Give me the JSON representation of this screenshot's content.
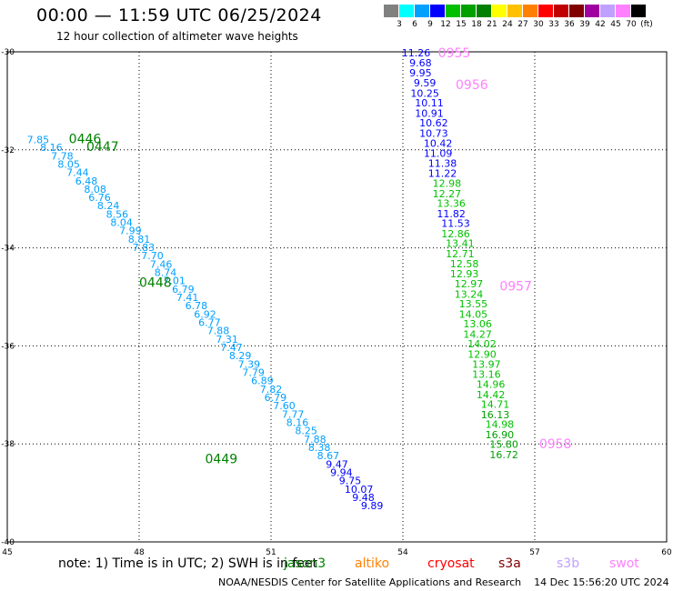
{
  "title": "00:00 — 11:59 UTC 06/25/2024",
  "subtitle": "12 hour collection of altimeter wave heights",
  "colorbar": {
    "colors": [
      "#808080",
      "#00ffff",
      "#00a0ff",
      "#0000ff",
      "#00c000",
      "#00a000",
      "#008000",
      "#ffff00",
      "#ffc000",
      "#ff8000",
      "#ff0000",
      "#c00000",
      "#800000",
      "#a000a0",
      "#c0a0ff",
      "#ff80ff",
      "#000000"
    ],
    "labels": [
      "3",
      "6",
      "9",
      "12",
      "15",
      "18",
      "21",
      "24",
      "27",
      "30",
      "33",
      "36",
      "39",
      "42",
      "45",
      "70",
      "(ft)"
    ]
  },
  "note": "note: 1) Time is in UTC; 2) SWH is in feet",
  "satellites": [
    {
      "name": "jason3",
      "color": "#008000"
    },
    {
      "name": "altiko",
      "color": "#ff8000"
    },
    {
      "name": "cryosat",
      "color": "#ff0000"
    },
    {
      "name": "s3a",
      "color": "#800000"
    },
    {
      "name": "s3b",
      "color": "#c0a0ff"
    },
    {
      "name": "swot",
      "color": "#ff80ff"
    }
  ],
  "footer": "NOAA/NESDIS Center for Satellite Applications and Research    14 Dec 15:56:20 UTC 2024",
  "chart_data": {
    "type": "scatter",
    "xlim": [
      45,
      60
    ],
    "ylim": [
      -40,
      -30
    ],
    "x_ticks": [
      "45",
      "48",
      "51",
      "54",
      "57",
      "60"
    ],
    "y_ticks": [
      "-30",
      "-32",
      "-34",
      "-36",
      "-38",
      "-40"
    ],
    "grid": true,
    "tracks": [
      {
        "labels": [
          {
            "text": "0446",
            "x": 46.4,
            "y": -31.77,
            "color": "#008000"
          },
          {
            "text": "0447",
            "x": 46.8,
            "y": -31.93,
            "color": "#008000"
          },
          {
            "text": "0448",
            "x": 48.0,
            "y": -34.7,
            "color": "#008000"
          },
          {
            "text": "0449",
            "x": 49.5,
            "y": -38.3,
            "color": "#008000"
          }
        ],
        "points": [
          {
            "x": 45.7,
            "y": -31.79,
            "v": "7.85"
          },
          {
            "x": 46.0,
            "y": -31.95,
            "v": "8.16"
          },
          {
            "x": 46.25,
            "y": -32.12,
            "v": "7.78"
          },
          {
            "x": 46.4,
            "y": -32.29,
            "v": "8.05"
          },
          {
            "x": 46.6,
            "y": -32.46,
            "v": "7.44"
          },
          {
            "x": 46.8,
            "y": -32.63,
            "v": "6.48"
          },
          {
            "x": 47.0,
            "y": -32.8,
            "v": "8.08"
          },
          {
            "x": 47.1,
            "y": -32.97,
            "v": "6.76"
          },
          {
            "x": 47.3,
            "y": -33.14,
            "v": "8.24"
          },
          {
            "x": 47.5,
            "y": -33.31,
            "v": "8.56"
          },
          {
            "x": 47.6,
            "y": -33.48,
            "v": "8.04"
          },
          {
            "x": 47.8,
            "y": -33.65,
            "v": "7.99"
          },
          {
            "x": 48.0,
            "y": -33.82,
            "v": "8.81"
          },
          {
            "x": 48.1,
            "y": -33.99,
            "v": "7.83"
          },
          {
            "x": 48.3,
            "y": -34.16,
            "v": "7.70"
          },
          {
            "x": 48.5,
            "y": -34.33,
            "v": "7.46"
          },
          {
            "x": 48.6,
            "y": -34.5,
            "v": "8.74"
          },
          {
            "x": 48.8,
            "y": -34.67,
            "v": "7.01"
          },
          {
            "x": 49.0,
            "y": -34.84,
            "v": "6.79"
          },
          {
            "x": 49.1,
            "y": -35.01,
            "v": "7.41"
          },
          {
            "x": 49.3,
            "y": -35.18,
            "v": "6.78"
          },
          {
            "x": 49.5,
            "y": -35.35,
            "v": "6.92"
          },
          {
            "x": 49.6,
            "y": -35.52,
            "v": "6.77"
          },
          {
            "x": 49.8,
            "y": -35.69,
            "v": "7.88"
          },
          {
            "x": 50.0,
            "y": -35.86,
            "v": "7.31"
          },
          {
            "x": 50.1,
            "y": -36.03,
            "v": "7.47"
          },
          {
            "x": 50.3,
            "y": -36.2,
            "v": "8.29"
          },
          {
            "x": 50.5,
            "y": -36.37,
            "v": "7.39"
          },
          {
            "x": 50.6,
            "y": -36.54,
            "v": "7.79"
          },
          {
            "x": 50.8,
            "y": -36.71,
            "v": "6.89"
          },
          {
            "x": 51.0,
            "y": -36.88,
            "v": "7.82"
          },
          {
            "x": 51.1,
            "y": -37.05,
            "v": "6.79"
          },
          {
            "x": 51.3,
            "y": -37.22,
            "v": "7.60"
          },
          {
            "x": 51.5,
            "y": -37.39,
            "v": "7.77"
          },
          {
            "x": 51.6,
            "y": -37.56,
            "v": "8.16"
          },
          {
            "x": 51.8,
            "y": -37.73,
            "v": "8.25"
          },
          {
            "x": 52.0,
            "y": -37.9,
            "v": "7.88"
          },
          {
            "x": 52.1,
            "y": -38.07,
            "v": "8.38"
          },
          {
            "x": 52.3,
            "y": -38.24,
            "v": "8.67"
          },
          {
            "x": 52.5,
            "y": -38.41,
            "v": "9.47"
          },
          {
            "x": 52.6,
            "y": -38.58,
            "v": "9.94"
          },
          {
            "x": 52.8,
            "y": -38.75,
            "v": "9.75"
          },
          {
            "x": 53.0,
            "y": -38.92,
            "v": "10.07"
          },
          {
            "x": 53.1,
            "y": -39.09,
            "v": "9.48"
          },
          {
            "x": 53.3,
            "y": -39.26,
            "v": "9.89"
          }
        ]
      },
      {
        "labels": [
          {
            "text": "0955",
            "x": 54.8,
            "y": -30.02,
            "color": "#ff80ff"
          },
          {
            "text": "0956",
            "x": 55.2,
            "y": -30.67,
            "color": "#ff80ff"
          },
          {
            "text": "0957",
            "x": 56.2,
            "y": -34.78,
            "color": "#ff80ff"
          },
          {
            "text": "0958",
            "x": 57.1,
            "y": -38.0,
            "color": "#ff80ff"
          }
        ],
        "points": [
          {
            "x": 54.3,
            "y": -30.02,
            "v": "11.26"
          },
          {
            "x": 54.4,
            "y": -30.22,
            "v": "9.68"
          },
          {
            "x": 54.4,
            "y": -30.43,
            "v": "9.95"
          },
          {
            "x": 54.5,
            "y": -30.63,
            "v": "9.59"
          },
          {
            "x": 54.5,
            "y": -30.84,
            "v": "10.25"
          },
          {
            "x": 54.6,
            "y": -31.04,
            "v": "10.11"
          },
          {
            "x": 54.6,
            "y": -31.25,
            "v": "10.91"
          },
          {
            "x": 54.7,
            "y": -31.45,
            "v": "10.62"
          },
          {
            "x": 54.7,
            "y": -31.66,
            "v": "10.73"
          },
          {
            "x": 54.8,
            "y": -31.86,
            "v": "10.42"
          },
          {
            "x": 54.8,
            "y": -32.07,
            "v": "11.09"
          },
          {
            "x": 54.9,
            "y": -32.27,
            "v": "11.38"
          },
          {
            "x": 54.9,
            "y": -32.48,
            "v": "11.22"
          },
          {
            "x": 55.0,
            "y": -32.68,
            "v": "12.98"
          },
          {
            "x": 55.0,
            "y": -32.89,
            "v": "12.27"
          },
          {
            "x": 55.1,
            "y": -33.09,
            "v": "13.36"
          },
          {
            "x": 55.1,
            "y": -33.3,
            "v": "11.82"
          },
          {
            "x": 55.2,
            "y": -33.5,
            "v": "11.53"
          },
          {
            "x": 55.2,
            "y": -33.71,
            "v": "12.86"
          },
          {
            "x": 55.3,
            "y": -33.91,
            "v": "13.41"
          },
          {
            "x": 55.3,
            "y": -34.12,
            "v": "12.71"
          },
          {
            "x": 55.4,
            "y": -34.32,
            "v": "12.58"
          },
          {
            "x": 55.4,
            "y": -34.53,
            "v": "12.93"
          },
          {
            "x": 55.5,
            "y": -34.73,
            "v": "12.97"
          },
          {
            "x": 55.5,
            "y": -34.94,
            "v": "13.24"
          },
          {
            "x": 55.6,
            "y": -35.14,
            "v": "13.55"
          },
          {
            "x": 55.6,
            "y": -35.35,
            "v": "14.05"
          },
          {
            "x": 55.7,
            "y": -35.55,
            "v": "13.06"
          },
          {
            "x": 55.7,
            "y": -35.76,
            "v": "14.27"
          },
          {
            "x": 55.8,
            "y": -35.96,
            "v": "14.02"
          },
          {
            "x": 55.8,
            "y": -36.17,
            "v": "12.90"
          },
          {
            "x": 55.9,
            "y": -36.37,
            "v": "13.97"
          },
          {
            "x": 55.9,
            "y": -36.58,
            "v": "13.16"
          },
          {
            "x": 56.0,
            "y": -36.78,
            "v": "14.96"
          },
          {
            "x": 56.0,
            "y": -36.99,
            "v": "14.42"
          },
          {
            "x": 56.1,
            "y": -37.19,
            "v": "14.71"
          },
          {
            "x": 56.1,
            "y": -37.4,
            "v": "16.13"
          },
          {
            "x": 56.2,
            "y": -37.6,
            "v": "14.98"
          },
          {
            "x": 56.2,
            "y": -37.81,
            "v": "16.90"
          },
          {
            "x": 56.3,
            "y": -38.01,
            "v": "15.80"
          },
          {
            "x": 56.3,
            "y": -38.22,
            "v": "16.72"
          }
        ]
      }
    ]
  }
}
